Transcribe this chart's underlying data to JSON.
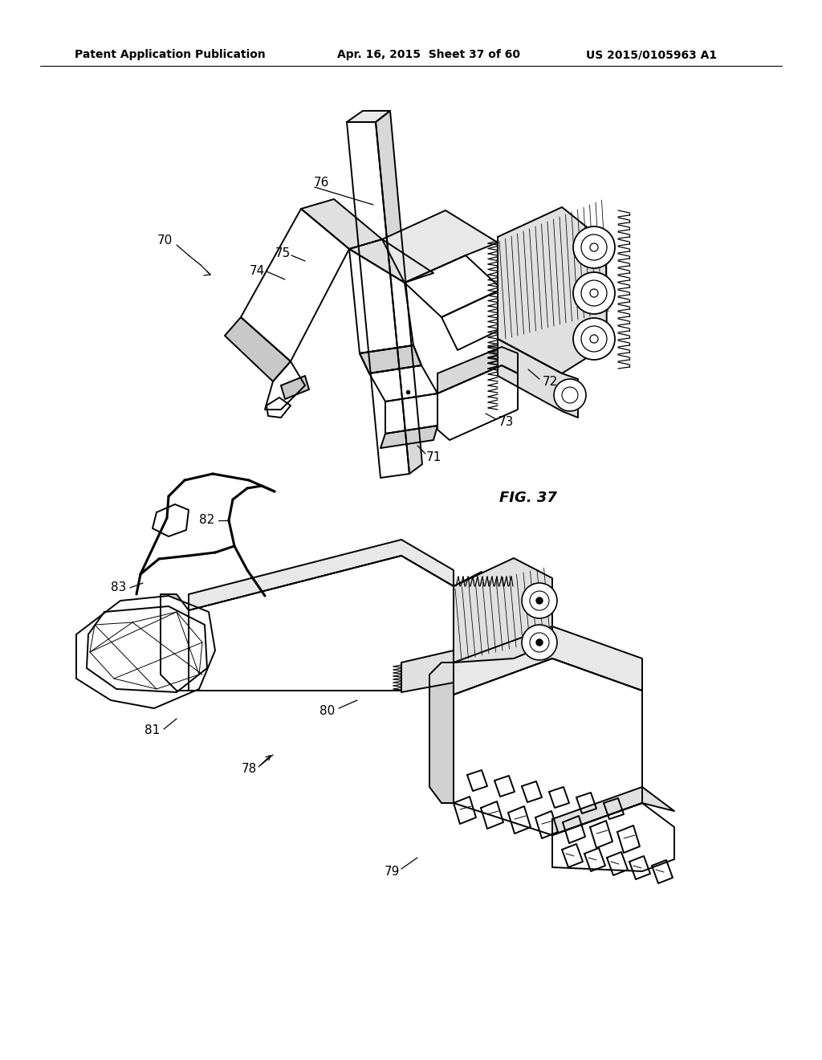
{
  "header_left": "Patent Application Publication",
  "header_mid": "Apr. 16, 2015  Sheet 37 of 60",
  "header_right": "US 2015/0105963 A1",
  "fig_label": "FIG. 37",
  "background_color": "#ffffff",
  "line_color": "#000000",
  "lw_main": 1.4,
  "lw_thin": 0.7,
  "lw_thick": 2.2
}
